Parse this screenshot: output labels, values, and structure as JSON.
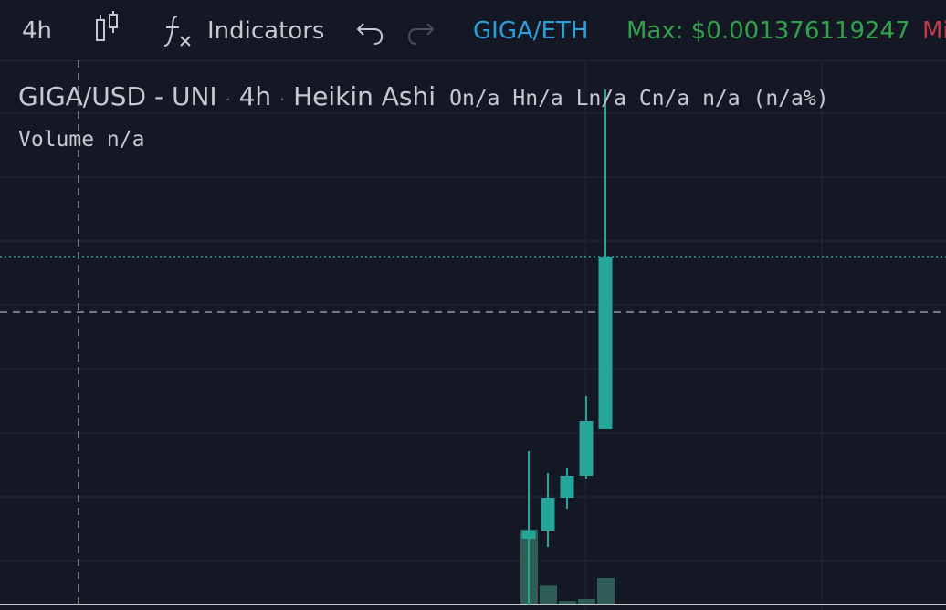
{
  "toolbar": {
    "timeframe": "4h",
    "indicators_label": "Indicators",
    "pair_label": "GIGA/ETH",
    "max_label": "Max: $0.001376119247",
    "min_label_partial": "Mi",
    "icons": {
      "candle": "candlestick-icon",
      "fx": "function-icon",
      "undo": "undo-icon",
      "redo": "redo-icon"
    }
  },
  "legend": {
    "symbol": "GIGA/USD - UNI",
    "interval": "4h",
    "chart_style": "Heikin Ashi",
    "ohlc": "On/a Hn/a Ln/a Cn/a n/a (n/a%)"
  },
  "volume_legend": "Volume n/a",
  "colors": {
    "background": "#141825",
    "grid": "#232838",
    "up_candle": "#26a69a",
    "volume_bar": "#2f5e56",
    "pair_text": "#2aa0d6",
    "max_text": "#31a24c",
    "min_text": "#c23a48"
  },
  "chart_data": {
    "type": "candlestick",
    "style": "Heikin Ashi",
    "candles": [
      {
        "open": 0.4,
        "high": 2.0,
        "low": -0.8,
        "close": 0.55
      },
      {
        "open": 0.55,
        "high": 1.6,
        "low": 0.25,
        "close": 1.15
      },
      {
        "open": 1.15,
        "high": 1.7,
        "low": 0.95,
        "close": 1.55
      },
      {
        "open": 1.55,
        "high": 3.0,
        "low": 1.5,
        "close": 2.55
      },
      {
        "open": 2.4,
        "high": 8.6,
        "low": 2.4,
        "close": 5.55
      }
    ],
    "volumes": [
      2.9,
      0.7,
      0.1,
      0.18,
      1.0
    ],
    "grid": true
  }
}
